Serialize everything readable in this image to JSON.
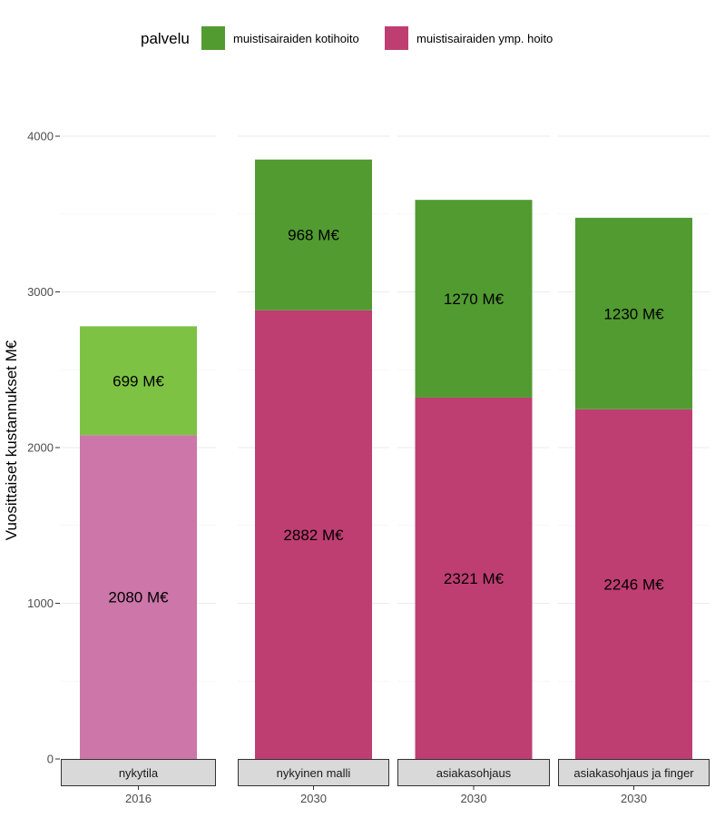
{
  "chart_data": {
    "type": "bar",
    "stacked": true,
    "ylabel": "Vuosittaiset kustannukset M€",
    "ylim": [
      0,
      4000
    ],
    "yticks": [
      0,
      1000,
      2000,
      3000,
      4000
    ],
    "grid": true,
    "legend": {
      "title": "palvelu",
      "position": "top",
      "entries": [
        {
          "label": "muistisairaiden kotihoito",
          "color": "#529b31"
        },
        {
          "label": "muistisairaiden ymp. hoito",
          "color": "#bf3e72"
        }
      ]
    },
    "panels": [
      {
        "facet": "nykytila",
        "category": "2016",
        "segments": [
          {
            "series": "muistisairaiden ymp. hoito",
            "value": 2080,
            "label": "2080 M€",
            "color": "#cc76a9"
          },
          {
            "series": "muistisairaiden kotihoito",
            "value": 699,
            "label": "699 M€",
            "color": "#7ec243"
          }
        ]
      },
      {
        "facet": "nykyinen malli",
        "category": "2030",
        "segments": [
          {
            "series": "muistisairaiden ymp. hoito",
            "value": 2882,
            "label": "2882 M€",
            "color": "#bf3e72"
          },
          {
            "series": "muistisairaiden kotihoito",
            "value": 968,
            "label": "968 M€",
            "color": "#529b31"
          }
        ]
      },
      {
        "facet": "asiakasohjaus",
        "category": "2030",
        "segments": [
          {
            "series": "muistisairaiden ymp. hoito",
            "value": 2321,
            "label": "2321 M€",
            "color": "#bf3e72"
          },
          {
            "series": "muistisairaiden kotihoito",
            "value": 1270,
            "label": "1270 M€",
            "color": "#529b31"
          }
        ]
      },
      {
        "facet": "asiakasohjaus ja finger",
        "category": "2030",
        "segments": [
          {
            "series": "muistisairaiden ymp. hoito",
            "value": 2246,
            "label": "2246 M€",
            "color": "#bf3e72"
          },
          {
            "series": "muistisairaiden kotihoito",
            "value": 1230,
            "label": "1230 M€",
            "color": "#529b31"
          }
        ]
      }
    ]
  }
}
